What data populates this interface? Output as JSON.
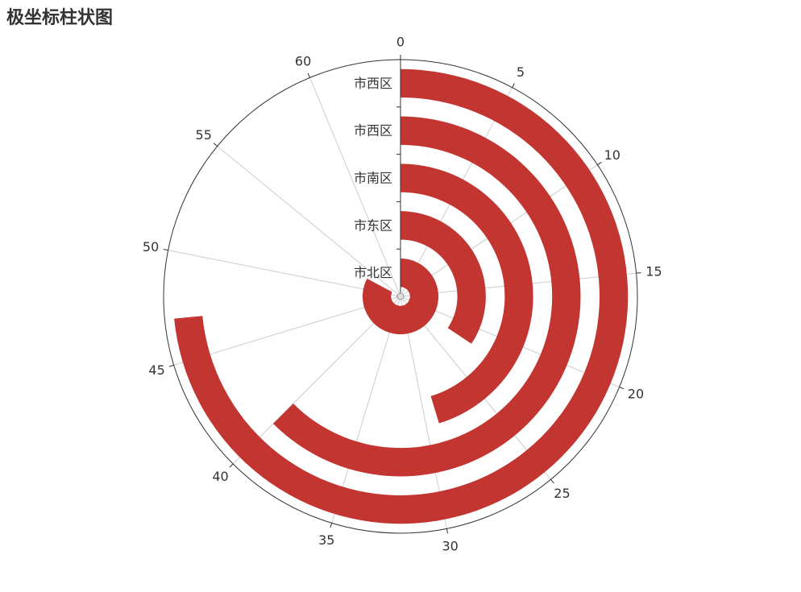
{
  "chart_data": {
    "type": "bar",
    "coordinate_system": "polar",
    "title": "极坐标柱状图",
    "angle_axis": {
      "min": 0,
      "max": 64,
      "ticks": [
        0,
        5,
        10,
        15,
        20,
        25,
        30,
        35,
        40,
        45,
        50,
        55,
        60
      ]
    },
    "radius_axis": {
      "categories": [
        "市北区",
        "市东区",
        "市南区",
        "市西区",
        "市西区"
      ]
    },
    "values": [
      53,
      22,
      29,
      40,
      47
    ],
    "bar_color": "#c23531",
    "axis_color": "#333333",
    "split_line_color": "#cccccc"
  }
}
